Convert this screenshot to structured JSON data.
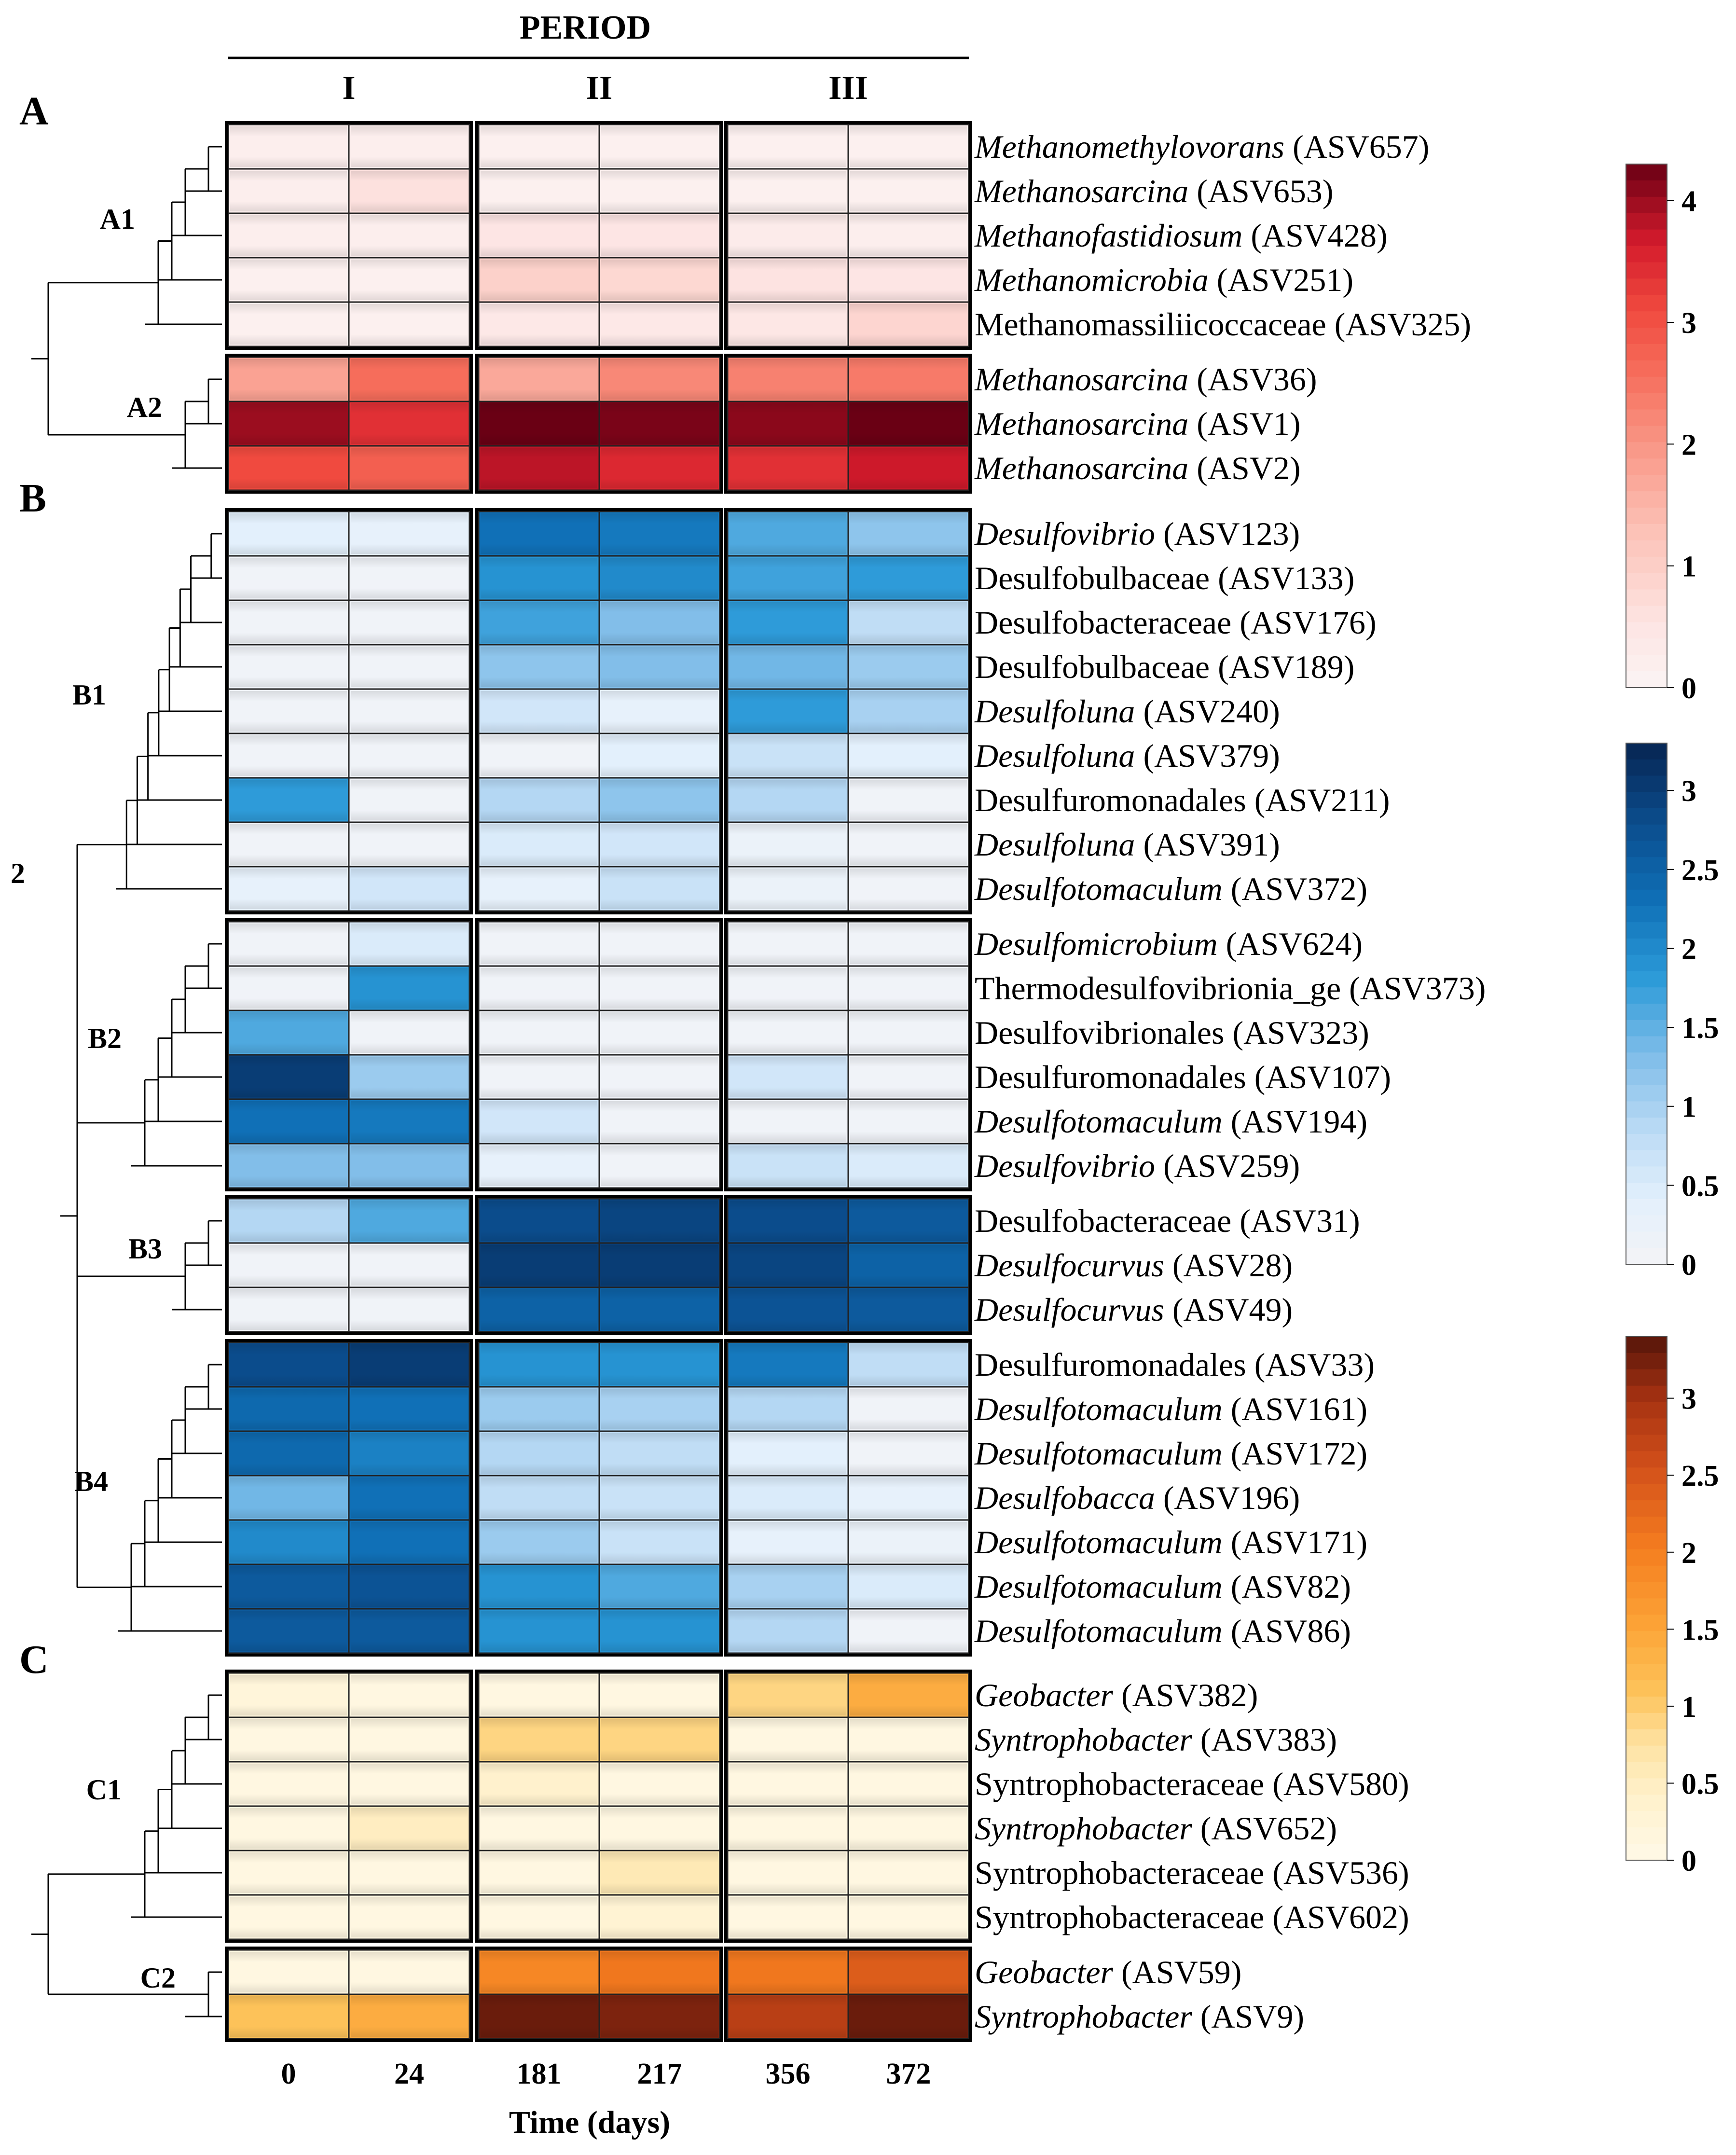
{
  "chart_data": {
    "type": "heatmap",
    "title": "PERIOD",
    "xlabel": "Time (days)",
    "periods": [
      "I",
      "II",
      "III"
    ],
    "time_points": [
      "0",
      "24",
      "181",
      "217",
      "356",
      "372"
    ],
    "sections": [
      {
        "label": "A",
        "colormap": "reds",
        "scale_ticks": [
          "0",
          "1",
          "2",
          "3",
          "4"
        ],
        "scale_range": [
          0,
          4.3
        ],
        "clusters": [
          {
            "label": "A1",
            "rows": [
              {
                "name": "Methanomethylovorans",
                "asv": "(ASV657)",
                "italic": true,
                "values": [
                  0.2,
                  0.2,
                  0.15,
                  0.15,
                  0.15,
                  0.15
                ]
              },
              {
                "name": "Methanosarcina",
                "asv": "(ASV653)",
                "italic": true,
                "values": [
                  0.2,
                  0.6,
                  0.15,
                  0.15,
                  0.15,
                  0.15
                ]
              },
              {
                "name": "Methanofastidiosum",
                "asv": "(ASV428)",
                "italic": true,
                "values": [
                  0.2,
                  0.2,
                  0.5,
                  0.5,
                  0.3,
                  0.2
                ]
              },
              {
                "name": "Methanomicrobia",
                "asv": "(ASV251)",
                "italic": true,
                "values": [
                  0.15,
                  0.15,
                  0.95,
                  0.8,
                  0.55,
                  0.5
                ]
              },
              {
                "name": "Methanomassiliicoccaceae",
                "asv": "(ASV325)",
                "italic": false,
                "values": [
                  0.15,
                  0.15,
                  0.4,
                  0.4,
                  0.45,
                  0.85
                ]
              }
            ]
          },
          {
            "label": "A2",
            "rows": [
              {
                "name": "Methanosarcina",
                "asv": "(ASV36)",
                "italic": true,
                "values": [
                  1.8,
                  2.6,
                  1.7,
                  2.2,
                  2.3,
                  2.4
                ]
              },
              {
                "name": "Methanosarcina",
                "asv": "(ASV1)",
                "italic": true,
                "values": [
                  4.0,
                  3.4,
                  4.3,
                  4.2,
                  4.1,
                  4.3
                ]
              },
              {
                "name": "Methanosarcina",
                "asv": "(ASV2)",
                "italic": true,
                "values": [
                  3.1,
                  2.8,
                  3.8,
                  3.5,
                  3.4,
                  3.7
                ]
              }
            ]
          }
        ]
      },
      {
        "label": "B",
        "colormap": "blues",
        "scale_ticks": [
          "0",
          "0.5",
          "1",
          "1.5",
          "2",
          "2.5",
          "3"
        ],
        "scale_range": [
          0,
          3.3
        ],
        "clusters": [
          {
            "label": "B1",
            "rows": [
              {
                "name": "Desulfovibrio",
                "asv": "(ASV123)",
                "italic": true,
                "values": [
                  0.4,
                  0.3,
                  2.3,
                  2.2,
                  1.6,
                  1.2
                ]
              },
              {
                "name": "Desulfobulbaceae",
                "asv": "(ASV133)",
                "italic": false,
                "values": [
                  0.1,
                  0.1,
                  1.9,
                  2.0,
                  1.7,
                  1.8
                ]
              },
              {
                "name": "Desulfobacteraceae",
                "asv": "(ASV176)",
                "italic": false,
                "values": [
                  0.1,
                  0.1,
                  1.7,
                  1.3,
                  1.8,
                  0.8
                ]
              },
              {
                "name": "Desulfobulbaceae",
                "asv": "(ASV189)",
                "italic": false,
                "values": [
                  0.1,
                  0.1,
                  1.2,
                  1.3,
                  1.4,
                  1.1
                ]
              },
              {
                "name": "Desulfoluna",
                "asv": "(ASV240)",
                "italic": true,
                "values": [
                  0.1,
                  0.1,
                  0.6,
                  0.3,
                  1.8,
                  1.0
                ]
              },
              {
                "name": "Desulfoluna",
                "asv": "(ASV379)",
                "italic": true,
                "values": [
                  0.1,
                  0.1,
                  0.1,
                  0.4,
                  0.7,
                  0.4
                ]
              },
              {
                "name": "Desulfuromonadales",
                "asv": "(ASV211)",
                "italic": false,
                "values": [
                  1.8,
                  0.1,
                  0.9,
                  1.2,
                  0.9,
                  0.1
                ]
              },
              {
                "name": "Desulfoluna",
                "asv": "(ASV391)",
                "italic": true,
                "values": [
                  0.1,
                  0.1,
                  0.5,
                  0.6,
                  0.2,
                  0.1
                ]
              },
              {
                "name": "Desulfotomaculum",
                "asv": "(ASV372)",
                "italic": true,
                "values": [
                  0.3,
                  0.6,
                  0.3,
                  0.7,
                  0.2,
                  0.1
                ]
              }
            ]
          },
          {
            "label": "B2",
            "rows": [
              {
                "name": "Desulfomicrobium",
                "asv": "(ASV624)",
                "italic": true,
                "values": [
                  0.1,
                  0.5,
                  0.1,
                  0.1,
                  0.1,
                  0.1
                ]
              },
              {
                "name": "Thermodesulfovibrionia_ge",
                "asv": "(ASV373)",
                "italic": false,
                "values": [
                  0.1,
                  1.9,
                  0.1,
                  0.1,
                  0.1,
                  0.1
                ]
              },
              {
                "name": "Desulfovibrionales",
                "asv": "(ASV323)",
                "italic": false,
                "values": [
                  1.6,
                  0.1,
                  0.1,
                  0.1,
                  0.1,
                  0.1
                ]
              },
              {
                "name": "Desulfuromonadales",
                "asv": "(ASV107)",
                "italic": false,
                "values": [
                  3.0,
                  1.1,
                  0.1,
                  0.1,
                  0.6,
                  0.1
                ]
              },
              {
                "name": "Desulfotomaculum",
                "asv": "(ASV194)",
                "italic": true,
                "values": [
                  2.3,
                  2.2,
                  0.6,
                  0.1,
                  0.1,
                  0.1
                ]
              },
              {
                "name": "Desulfovibrio",
                "asv": "(ASV259)",
                "italic": true,
                "values": [
                  1.3,
                  1.3,
                  0.3,
                  0.1,
                  0.7,
                  0.5
                ]
              }
            ]
          },
          {
            "label": "B3",
            "rows": [
              {
                "name": "Desulfobacteraceae",
                "asv": "(ASV31)",
                "italic": false,
                "values": [
                  0.9,
                  1.6,
                  2.8,
                  2.9,
                  2.8,
                  2.6
                ]
              },
              {
                "name": "Desulfocurvus",
                "asv": "(ASV28)",
                "italic": true,
                "values": [
                  0.1,
                  0.1,
                  3.0,
                  3.0,
                  2.9,
                  2.5
                ]
              },
              {
                "name": "Desulfocurvus",
                "asv": "(ASV49)",
                "italic": true,
                "values": [
                  0.1,
                  0.1,
                  2.5,
                  2.5,
                  2.7,
                  2.6
                ]
              }
            ]
          },
          {
            "label": "B4",
            "rows": [
              {
                "name": "Desulfuromonadales",
                "asv": "(ASV33)",
                "italic": false,
                "values": [
                  2.8,
                  3.0,
                  1.9,
                  1.9,
                  2.2,
                  0.8
                ]
              },
              {
                "name": "Desulfotomaculum",
                "asv": "(ASV161)",
                "italic": true,
                "values": [
                  2.4,
                  2.3,
                  1.1,
                  1.0,
                  0.9,
                  0.1
                ]
              },
              {
                "name": "Desulfotomaculum",
                "asv": "(ASV172)",
                "italic": true,
                "values": [
                  2.4,
                  2.1,
                  0.9,
                  0.8,
                  0.4,
                  0.1
                ]
              },
              {
                "name": "Desulfobacca",
                "asv": "(ASV196)",
                "italic": true,
                "values": [
                  1.4,
                  2.3,
                  0.8,
                  0.7,
                  0.5,
                  0.3
                ]
              },
              {
                "name": "Desulfotomaculum",
                "asv": "(ASV171)",
                "italic": true,
                "values": [
                  2.0,
                  2.3,
                  1.1,
                  0.7,
                  0.3,
                  0.2
                ]
              },
              {
                "name": "Desulfotomaculum",
                "asv": "(ASV82)",
                "italic": true,
                "values": [
                  2.6,
                  2.7,
                  1.9,
                  1.6,
                  1.0,
                  0.5
                ]
              },
              {
                "name": "Desulfotomaculum",
                "asv": "(ASV86)",
                "italic": true,
                "values": [
                  2.6,
                  2.6,
                  1.9,
                  1.9,
                  0.9,
                  0.1
                ]
              }
            ]
          }
        ]
      },
      {
        "label": "C",
        "colormap": "oranges",
        "scale_ticks": [
          "0",
          "0.5",
          "1",
          "1.5",
          "2",
          "2.5",
          "3"
        ],
        "scale_range": [
          0,
          3.4
        ],
        "clusters": [
          {
            "label": "C1",
            "rows": [
              {
                "name": "Geobacter",
                "asv": "(ASV382)",
                "italic": true,
                "values": [
                  0.2,
                  0.1,
                  0.1,
                  0.1,
                  0.9,
                  1.4
                ]
              },
              {
                "name": "Syntrophobacter",
                "asv": "(ASV383)",
                "italic": true,
                "values": [
                  0.1,
                  0.1,
                  0.9,
                  0.9,
                  0.1,
                  0.1
                ]
              },
              {
                "name": "Syntrophobacteraceae",
                "asv": "(ASV580)",
                "italic": false,
                "values": [
                  0.1,
                  0.1,
                  0.4,
                  0.1,
                  0.1,
                  0.1
                ]
              },
              {
                "name": "Syntrophobacter",
                "asv": "(ASV652)",
                "italic": true,
                "values": [
                  0.1,
                  0.5,
                  0.1,
                  0.1,
                  0.1,
                  0.1
                ]
              },
              {
                "name": "Syntrophobacteraceae",
                "asv": "(ASV536)",
                "italic": false,
                "values": [
                  0.1,
                  0.1,
                  0.1,
                  0.6,
                  0.1,
                  0.1
                ]
              },
              {
                "name": "Syntrophobacteraceae",
                "asv": "(ASV602)",
                "italic": false,
                "values": [
                  0.1,
                  0.1,
                  0.1,
                  0.3,
                  0.1,
                  0.1
                ]
              }
            ]
          },
          {
            "label": "C2",
            "rows": [
              {
                "name": "Geobacter",
                "asv": "(ASV59)",
                "italic": true,
                "values": [
                  0.1,
                  0.1,
                  1.9,
                  2.1,
                  2.1,
                  2.4
                ]
              },
              {
                "name": "Syntrophobacter",
                "asv": "(ASV9)",
                "italic": true,
                "values": [
                  1.1,
                  1.4,
                  3.3,
                  3.2,
                  2.8,
                  3.3
                ]
              }
            ]
          }
        ]
      }
    ],
    "root_cluster_label": "2"
  }
}
